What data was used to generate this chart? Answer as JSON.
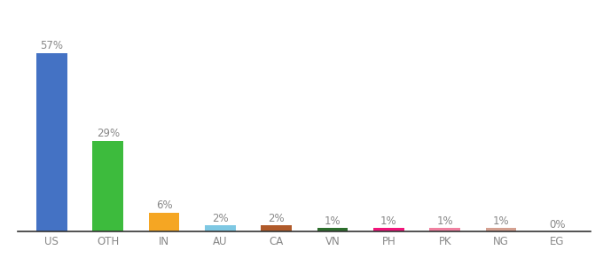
{
  "categories": [
    "US",
    "OTH",
    "IN",
    "AU",
    "CA",
    "VN",
    "PH",
    "PK",
    "NG",
    "EG"
  ],
  "values": [
    57,
    29,
    6,
    2,
    2,
    1,
    1,
    1,
    1,
    0
  ],
  "bar_colors": [
    "#4472c4",
    "#3dbb3d",
    "#f5a623",
    "#7ec8e3",
    "#b05a2a",
    "#2d6e2d",
    "#f0157a",
    "#f080a0",
    "#d4a090",
    "#d4a090"
  ],
  "label_values": [
    "57%",
    "29%",
    "6%",
    "2%",
    "2%",
    "1%",
    "1%",
    "1%",
    "1%",
    "0%"
  ],
  "background_color": "#ffffff",
  "bar_width": 0.55,
  "ylim": [
    0,
    68
  ],
  "label_fontsize": 8.5,
  "tick_fontsize": 8.5,
  "label_color": "#888888",
  "tick_color": "#888888"
}
